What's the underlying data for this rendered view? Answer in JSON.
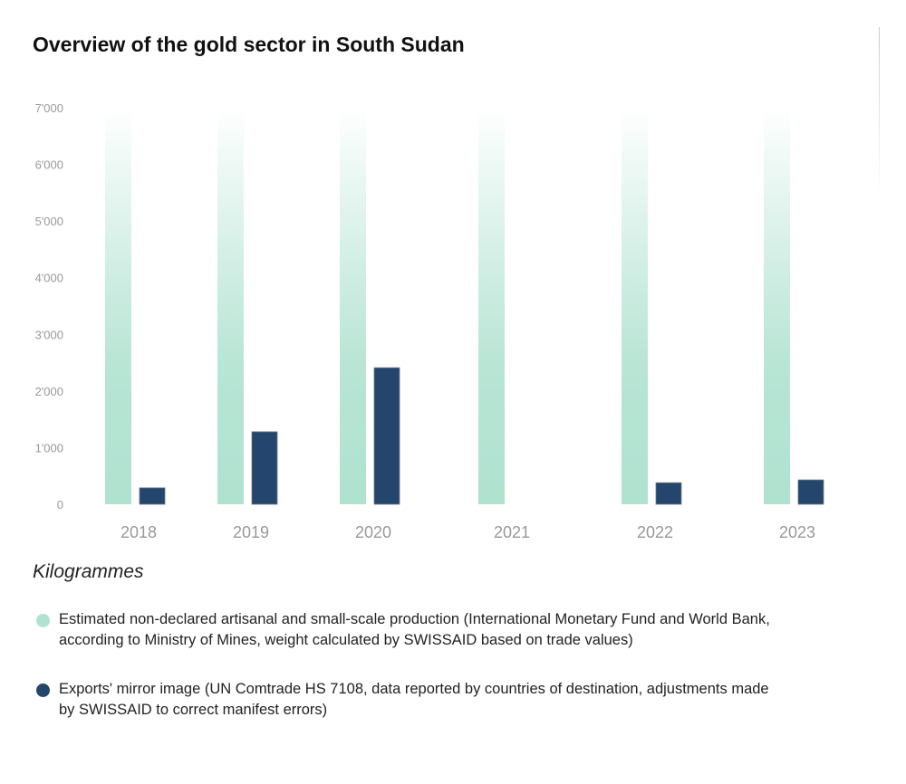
{
  "title": "Overview of the gold sector in South Sudan",
  "unit_label": "Kilogrammes",
  "colors": {
    "estimated": "#b0e2d0",
    "exports": "#24466c",
    "axis_text": "#999999"
  },
  "chart_data": {
    "type": "bar",
    "title": "Overview of the gold sector in South Sudan",
    "ylabel": "Kilogrammes",
    "ylim": [
      0,
      7000
    ],
    "yticks": [
      "0",
      "1'000",
      "2'000",
      "3'000",
      "4'000",
      "5'000",
      "6'000",
      "7'000"
    ],
    "ytick_values": [
      0,
      1000,
      2000,
      3000,
      4000,
      5000,
      6000,
      7000
    ],
    "categories": [
      "2018",
      "2019",
      "2020",
      "2021",
      "2022",
      "2023"
    ],
    "grid": false,
    "legend_placement": "bottom",
    "series": [
      {
        "name": "Estimated non-declared artisanal and small-scale production (International Monetary Fund and World Bank, according to Ministry of Mines, weight calculated by SWISSAID based on trade values)",
        "values": [
          7000,
          7000,
          7000,
          7000,
          7000,
          7000
        ],
        "style": "gradient-fading-upward",
        "color": "#b0e2d0"
      },
      {
        "name": "Exports' mirror image (UN Comtrade HS 7108, data reported by countries of destination, adjustments made by SWISSAID to correct manifest errors)",
        "values": [
          290,
          1280,
          2410,
          0,
          380,
          430
        ],
        "color": "#24466c"
      }
    ]
  }
}
